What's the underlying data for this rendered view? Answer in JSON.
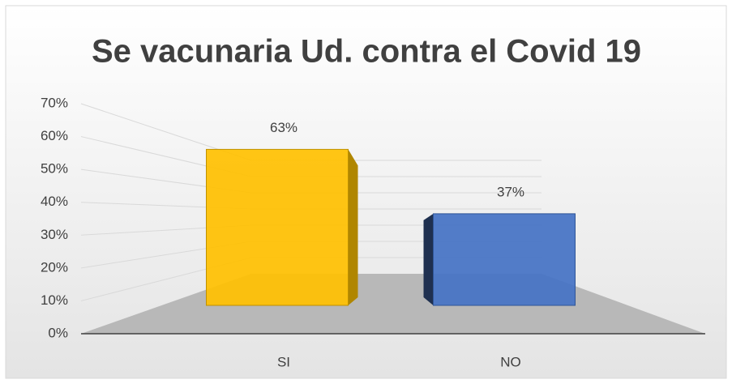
{
  "chart_data": {
    "type": "bar3d",
    "title": "Se vacunaria Ud. contra el Covid 19",
    "categories": [
      "SI",
      "NO"
    ],
    "values": [
      63,
      37
    ],
    "value_labels": [
      "63%",
      "37%"
    ],
    "colors": [
      "#ffc000",
      "#4472c4"
    ],
    "ylim": [
      0,
      70
    ],
    "yticks": [
      {
        "value": 0,
        "label": "0%"
      },
      {
        "value": 10,
        "label": "10%"
      },
      {
        "value": 20,
        "label": "20%"
      },
      {
        "value": 30,
        "label": "30%"
      },
      {
        "value": 40,
        "label": "40%"
      },
      {
        "value": 50,
        "label": "50%"
      },
      {
        "value": 60,
        "label": "60%"
      },
      {
        "value": 70,
        "label": "70%"
      }
    ],
    "grid": true
  }
}
